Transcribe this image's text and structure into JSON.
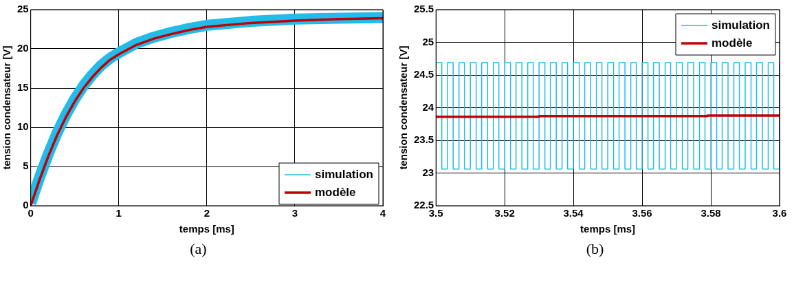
{
  "chart_data": [
    {
      "type": "line",
      "xlabel": "temps [ms]",
      "ylabel": "tension condensateur [V]",
      "xlim": [
        0,
        4
      ],
      "xticks": [
        0,
        1,
        2,
        3,
        4
      ],
      "ylim": [
        0,
        25
      ],
      "yticks": [
        0,
        5,
        10,
        15,
        20,
        25
      ],
      "grid": true,
      "legend": "bottom right",
      "annotations": [
        "(a)"
      ],
      "x": [
        0,
        0.1,
        0.2,
        0.3,
        0.4,
        0.5,
        0.6,
        0.7,
        0.8,
        0.9,
        1,
        1.2,
        1.4,
        1.6,
        1.8,
        2,
        2.5,
        3,
        3.5,
        4
      ],
      "series": [
        {
          "name": "simulation",
          "color": "#22bbea",
          "values": [
            0.3,
            3.6,
            6.6,
            9.3,
            11.6,
            13.6,
            15.3,
            16.7,
            17.9,
            18.8,
            19.5,
            20.7,
            21.5,
            22.1,
            22.6,
            23.0,
            23.5,
            23.8,
            23.9,
            24.0
          ]
        },
        {
          "name": "modèle",
          "color": "#c00000",
          "values": [
            0,
            3.3,
            6.3,
            9.0,
            11.3,
            13.3,
            15.0,
            16.4,
            17.6,
            18.6,
            19.3,
            20.5,
            21.3,
            21.9,
            22.4,
            22.8,
            23.3,
            23.6,
            23.8,
            23.9
          ]
        }
      ]
    },
    {
      "type": "step",
      "xlabel": "temps [ms]",
      "ylabel": "tension condensateur [V]",
      "xlim": [
        3.5,
        3.6
      ],
      "xticks": [
        3.5,
        3.52,
        3.54,
        3.56,
        3.58,
        3.6
      ],
      "ylim": [
        22.5,
        25.5
      ],
      "yticks": [
        22.5,
        23,
        23.5,
        24,
        24.5,
        25,
        25.5
      ],
      "grid": true,
      "legend": "top right",
      "annotations": [
        "(b)"
      ],
      "series": [
        {
          "name": "simulation",
          "color": "#22bbea",
          "x": [
            3.5,
            3.5017,
            3.5033,
            3.505,
            3.5067,
            3.5083,
            3.51,
            3.5117,
            3.5133,
            3.515,
            3.5167,
            3.5183,
            3.52,
            3.5217,
            3.5233,
            3.525,
            3.5267,
            3.5283,
            3.53,
            3.5317,
            3.5333,
            3.535,
            3.5367,
            3.5383,
            3.54,
            3.5417,
            3.5433,
            3.545,
            3.5467,
            3.5483,
            3.55,
            3.5517,
            3.5533,
            3.555,
            3.5567,
            3.5583,
            3.56,
            3.5617,
            3.5633,
            3.565,
            3.5667,
            3.5683,
            3.57,
            3.5717,
            3.5733,
            3.575,
            3.5767,
            3.5783,
            3.58,
            3.5817,
            3.5833,
            3.585,
            3.5867,
            3.5883,
            3.59,
            3.5917,
            3.5933,
            3.595,
            3.5967,
            3.5983,
            3.6
          ],
          "values": [
            24.69,
            23.06,
            24.69,
            23.06,
            24.69,
            23.06,
            24.69,
            23.06,
            24.69,
            23.06,
            24.69,
            23.06,
            24.69,
            23.06,
            24.69,
            23.06,
            24.69,
            23.06,
            24.69,
            23.06,
            24.69,
            23.06,
            24.69,
            23.06,
            24.69,
            23.06,
            24.69,
            23.06,
            24.69,
            23.06,
            24.69,
            23.06,
            24.69,
            23.06,
            24.69,
            23.06,
            24.69,
            23.06,
            24.69,
            23.06,
            24.69,
            23.06,
            24.69,
            23.06,
            24.69,
            23.06,
            24.69,
            23.06,
            24.69,
            23.06,
            24.69,
            23.06,
            24.69,
            23.06,
            24.69,
            23.06,
            24.69,
            23.06,
            24.69,
            23.06,
            24.69
          ]
        },
        {
          "name": "modèle",
          "color": "#c00000",
          "x": [
            3.5,
            3.53,
            3.579,
            3.6
          ],
          "values": [
            23.86,
            23.87,
            23.88,
            23.88
          ]
        }
      ]
    }
  ]
}
